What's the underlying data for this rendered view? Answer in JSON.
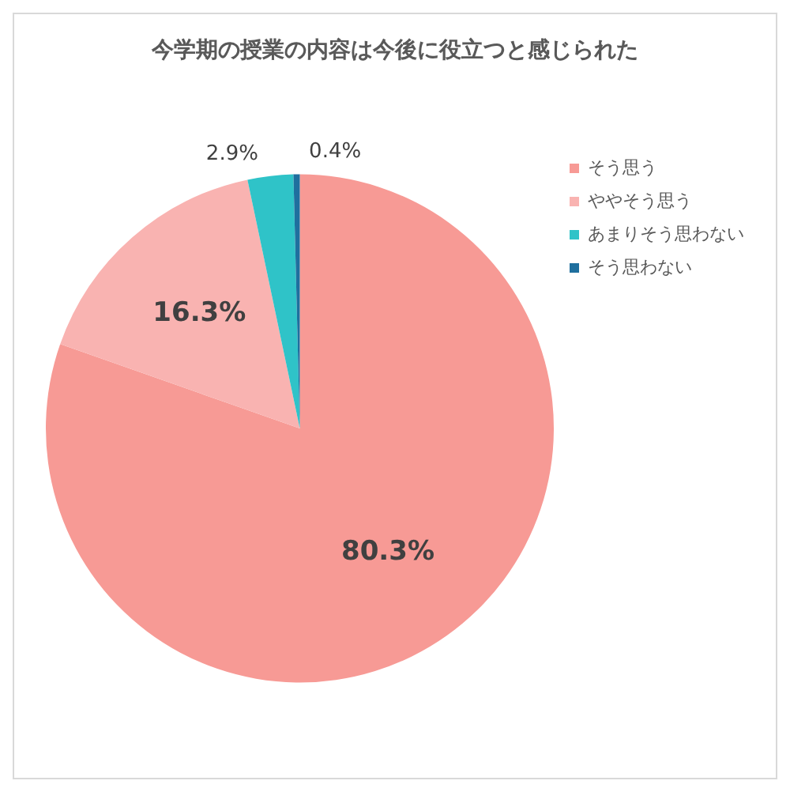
{
  "chart_data": {
    "type": "pie",
    "title": "今学期の授業の内容は今後に役立つと感じられた",
    "categories": [
      "そう思う",
      "ややそう思う",
      "あまりそう思わない",
      "そう思わない"
    ],
    "values": [
      80.3,
      16.3,
      2.9,
      0.4
    ],
    "colors": [
      "#f79a95",
      "#f9b3b1",
      "#2fc3c8",
      "#1f6f9e"
    ],
    "value_labels": [
      "80.3%",
      "16.3%",
      "2.9%",
      "0.4%"
    ],
    "legend": "top right"
  }
}
